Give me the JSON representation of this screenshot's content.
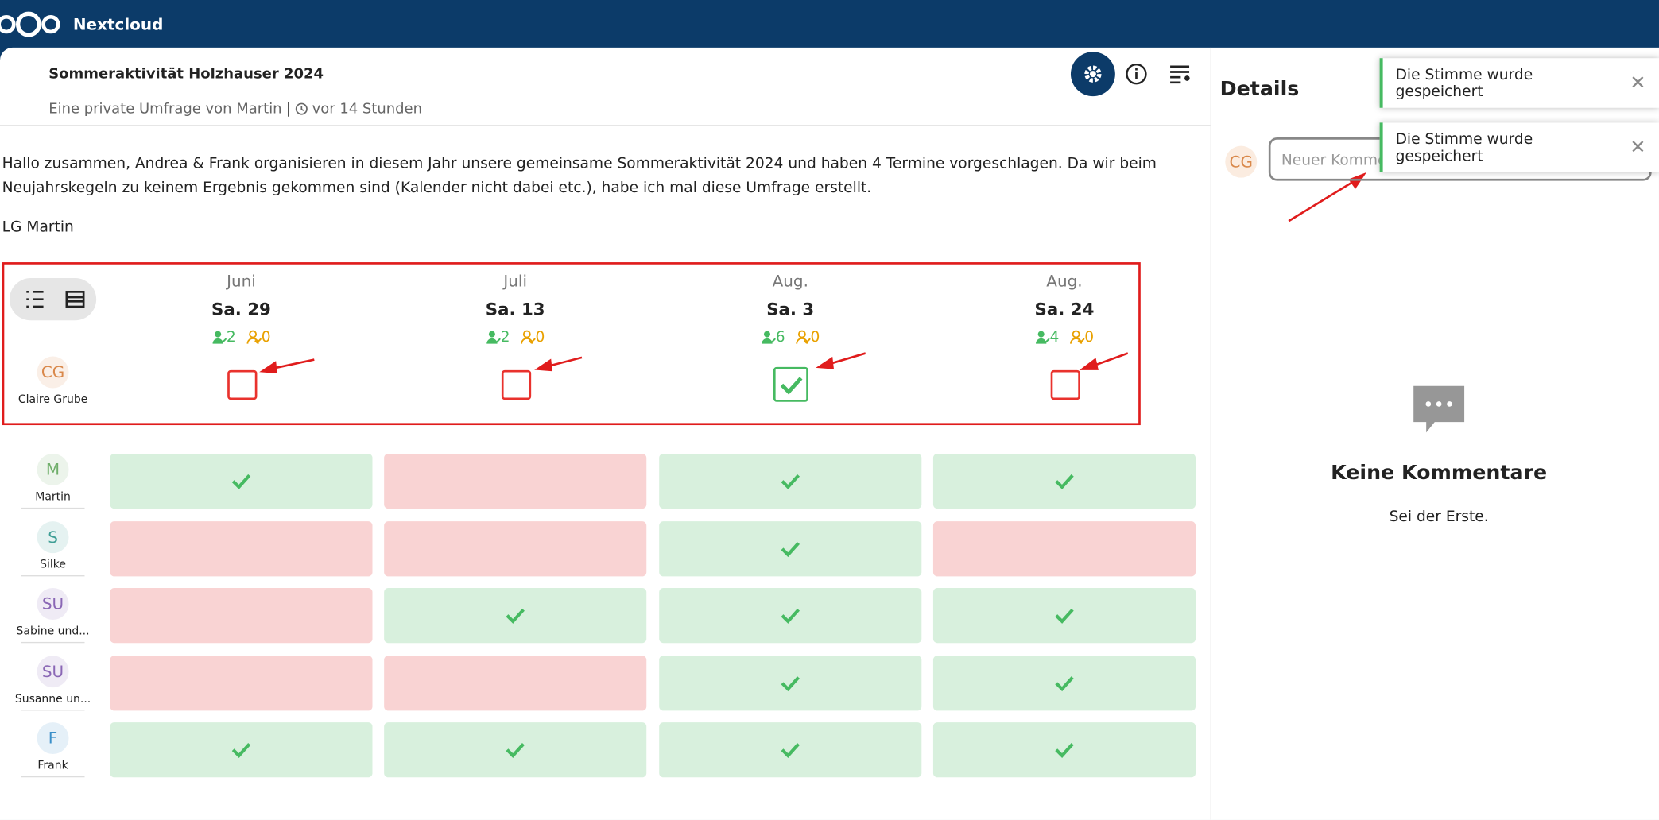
{
  "header": {
    "brand": "Nextcloud"
  },
  "poll": {
    "title": "Sommeraktivität Holzhauser 2024",
    "subtitle": "Eine private Umfrage von Martin",
    "age": "vor 14 Stunden",
    "description": [
      "Hallo zusammen, Andrea & Frank organisieren in diesem Jahr unsere gemeinsame Sommeraktivität 2024 und haben 4 Termine vorgeschlagen. Da wir beim Neujahrskegeln zu keinem Ergebnis gekommen sind (Kalender nicht dabei etc.), habe ich mal diese Umfrage erstellt.",
      "LG Martin"
    ]
  },
  "options": [
    {
      "month": "Juni",
      "day": "Sa. 29",
      "yes": 2,
      "maybe": 0
    },
    {
      "month": "Juli",
      "day": "Sa. 13",
      "yes": 2,
      "maybe": 0
    },
    {
      "month": "Aug.",
      "day": "Sa. 3",
      "yes": 6,
      "maybe": 0
    },
    {
      "month": "Aug.",
      "day": "Sa. 24",
      "yes": 4,
      "maybe": 0
    }
  ],
  "current_user": {
    "initials": "CG",
    "name": "Claire Grube",
    "color": "#d9884a",
    "votes": [
      "none",
      "none",
      "yes",
      "none"
    ]
  },
  "participants": [
    {
      "initials": "M",
      "name": "Martin",
      "color": "#6fae6a",
      "votes": [
        "yes",
        "no",
        "yes",
        "yes"
      ]
    },
    {
      "initials": "S",
      "name": "Silke",
      "color": "#3e9e95",
      "votes": [
        "no",
        "no",
        "yes",
        "no"
      ]
    },
    {
      "initials": "SU",
      "name": "Sabine und...",
      "color": "#8a67b5",
      "votes": [
        "no",
        "yes",
        "yes",
        "yes"
      ]
    },
    {
      "initials": "SU",
      "name": "Susanne un...",
      "color": "#8a67b5",
      "votes": [
        "no",
        "no",
        "yes",
        "yes"
      ]
    },
    {
      "initials": "F",
      "name": "Frank",
      "color": "#3a8fc9",
      "votes": [
        "yes",
        "yes",
        "yes",
        "yes"
      ]
    }
  ],
  "sidebar": {
    "title": "Details",
    "initials": "CG",
    "placeholder": "Neuer Kommentar",
    "empty_title": "Keine Kommentare",
    "empty_text": "Sei der Erste."
  },
  "toasts": [
    "Die Stimme wurde gespeichert",
    "Die Stimme wurde gespeichert"
  ]
}
